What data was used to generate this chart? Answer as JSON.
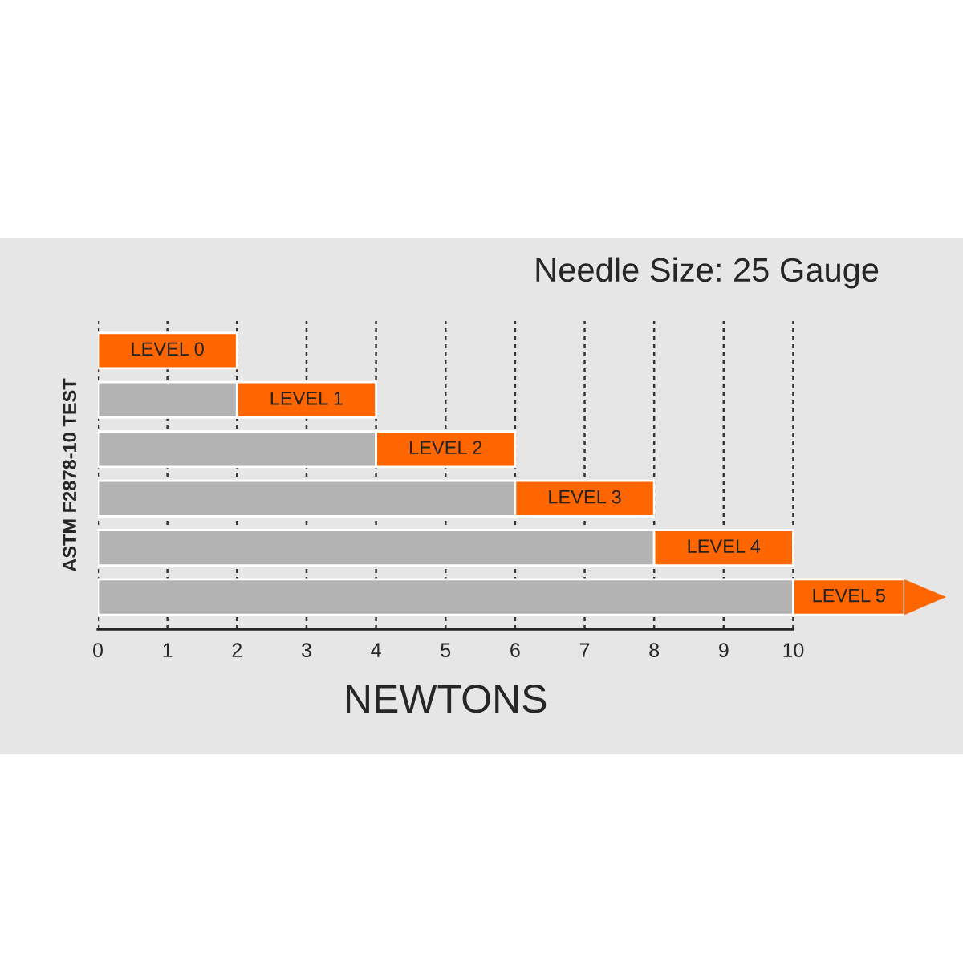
{
  "chart_data": {
    "type": "bar",
    "orientation": "horizontal",
    "stacked": true,
    "title": "Needle Size: 25 Gauge",
    "xlabel": "NEWTONS",
    "ylabel": "ASTM F2878-10 TEST",
    "categories": [
      "LEVEL 0",
      "LEVEL 1",
      "LEVEL 2",
      "LEVEL 3",
      "LEVEL 4",
      "LEVEL 5"
    ],
    "series": [
      {
        "color": "#b3b3b3",
        "values": [
          0,
          2,
          4,
          6,
          8,
          10
        ]
      },
      {
        "color": "#ff6600",
        "values": [
          2,
          2,
          2,
          2,
          2,
          1.6
        ]
      }
    ],
    "xlim": [
      0,
      12.4
    ],
    "xticks": [
      0,
      1,
      2,
      3,
      4,
      5,
      6,
      7,
      8,
      9,
      10
    ],
    "grid": "x"
  }
}
